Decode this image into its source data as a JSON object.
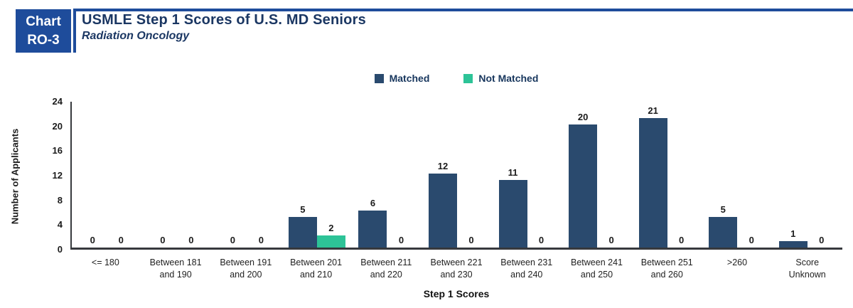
{
  "header": {
    "badge_line1": "Chart",
    "badge_line2": "RO-3",
    "title": "USMLE Step 1 Scores of U.S. MD Seniors",
    "subtitle": "Radiation Oncology"
  },
  "colors": {
    "accent_blue": "#1E4C9B",
    "matched": "#2A4A6E",
    "not_matched": "#2DC397",
    "axis": "#37393D"
  },
  "chart_data": {
    "type": "bar",
    "title": "USMLE Step 1 Scores of U.S. MD Seniors",
    "subtitle": "Radiation Oncology",
    "xlabel": "Step 1 Scores",
    "ylabel": "Number of Applicants",
    "ylim": [
      0,
      24
    ],
    "yticks": [
      0,
      4,
      8,
      12,
      16,
      20,
      24
    ],
    "grid": false,
    "legend_position": "top-center",
    "categories": [
      "<= 180",
      "Between 181\nand 190",
      "Between 191\nand 200",
      "Between 201\nand 210",
      "Between 211\nand 220",
      "Between 221\nand 230",
      "Between 231\nand 240",
      "Between 241\nand 250",
      "Between 251\nand 260",
      ">260",
      "Score\nUnknown"
    ],
    "series": [
      {
        "name": "Matched",
        "color": "#2A4A6E",
        "values": [
          0,
          0,
          0,
          5,
          6,
          12,
          11,
          20,
          21,
          5,
          1
        ]
      },
      {
        "name": "Not Matched",
        "color": "#2DC397",
        "values": [
          0,
          0,
          0,
          2,
          0,
          0,
          0,
          0,
          0,
          0,
          0
        ]
      }
    ]
  }
}
